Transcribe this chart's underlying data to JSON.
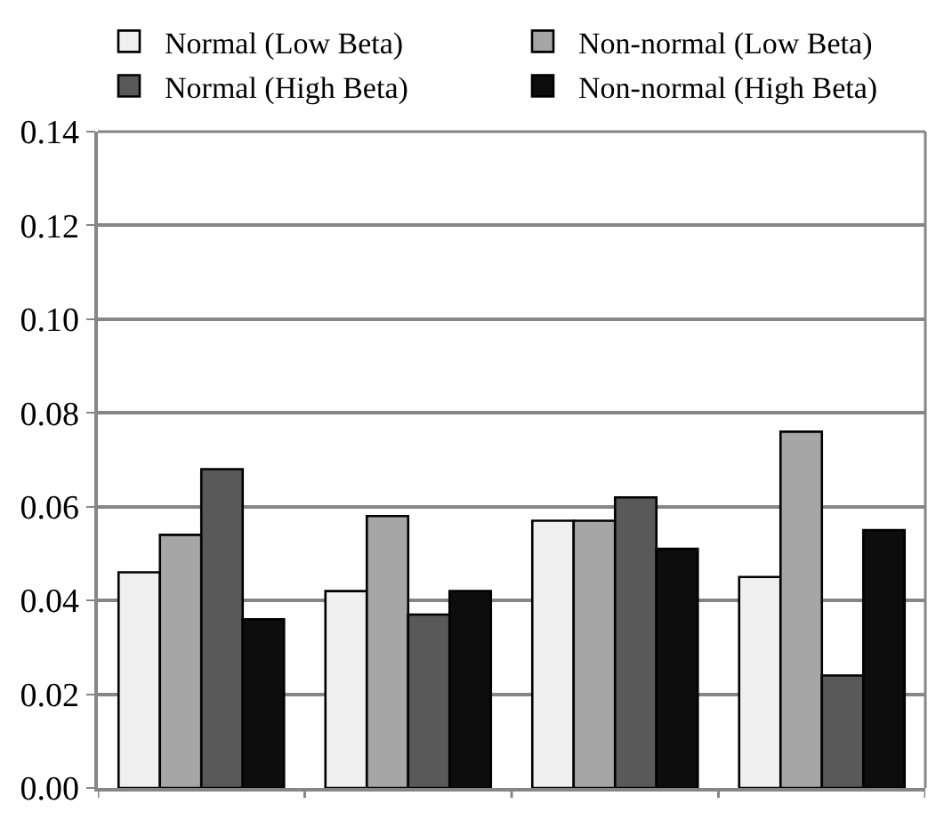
{
  "chart_data": {
    "type": "bar",
    "categories": [
      null,
      null,
      null,
      null
    ],
    "series": [
      {
        "name": "Normal (Low Beta)",
        "color": "#f0f0f0",
        "values": [
          0.046,
          0.042,
          0.057,
          0.045
        ]
      },
      {
        "name": "Non-normal (Low Beta)",
        "color": "#a6a6a6",
        "values": [
          0.054,
          0.058,
          0.057,
          0.076
        ]
      },
      {
        "name": "Normal (High Beta)",
        "color": "#595959",
        "values": [
          0.068,
          0.037,
          0.062,
          0.024
        ]
      },
      {
        "name": "Non-normal (High Beta)",
        "color": "#0d0d0d",
        "values": [
          0.036,
          0.042,
          0.051,
          0.055
        ]
      }
    ],
    "ylim": [
      0,
      0.14
    ],
    "yticks": [
      {
        "value": 0,
        "label": "0.00"
      },
      {
        "value": 0.02,
        "label": "0.02"
      },
      {
        "value": 0.04,
        "label": "0.04"
      },
      {
        "value": 0.06,
        "label": "0.06"
      },
      {
        "value": 0.08,
        "label": "0.08"
      },
      {
        "value": 0.1,
        "label": "0.10"
      },
      {
        "value": 0.12,
        "label": "0.12"
      },
      {
        "value": 0.14,
        "label": "0.14"
      }
    ],
    "grid": "y",
    "legend": "top"
  }
}
